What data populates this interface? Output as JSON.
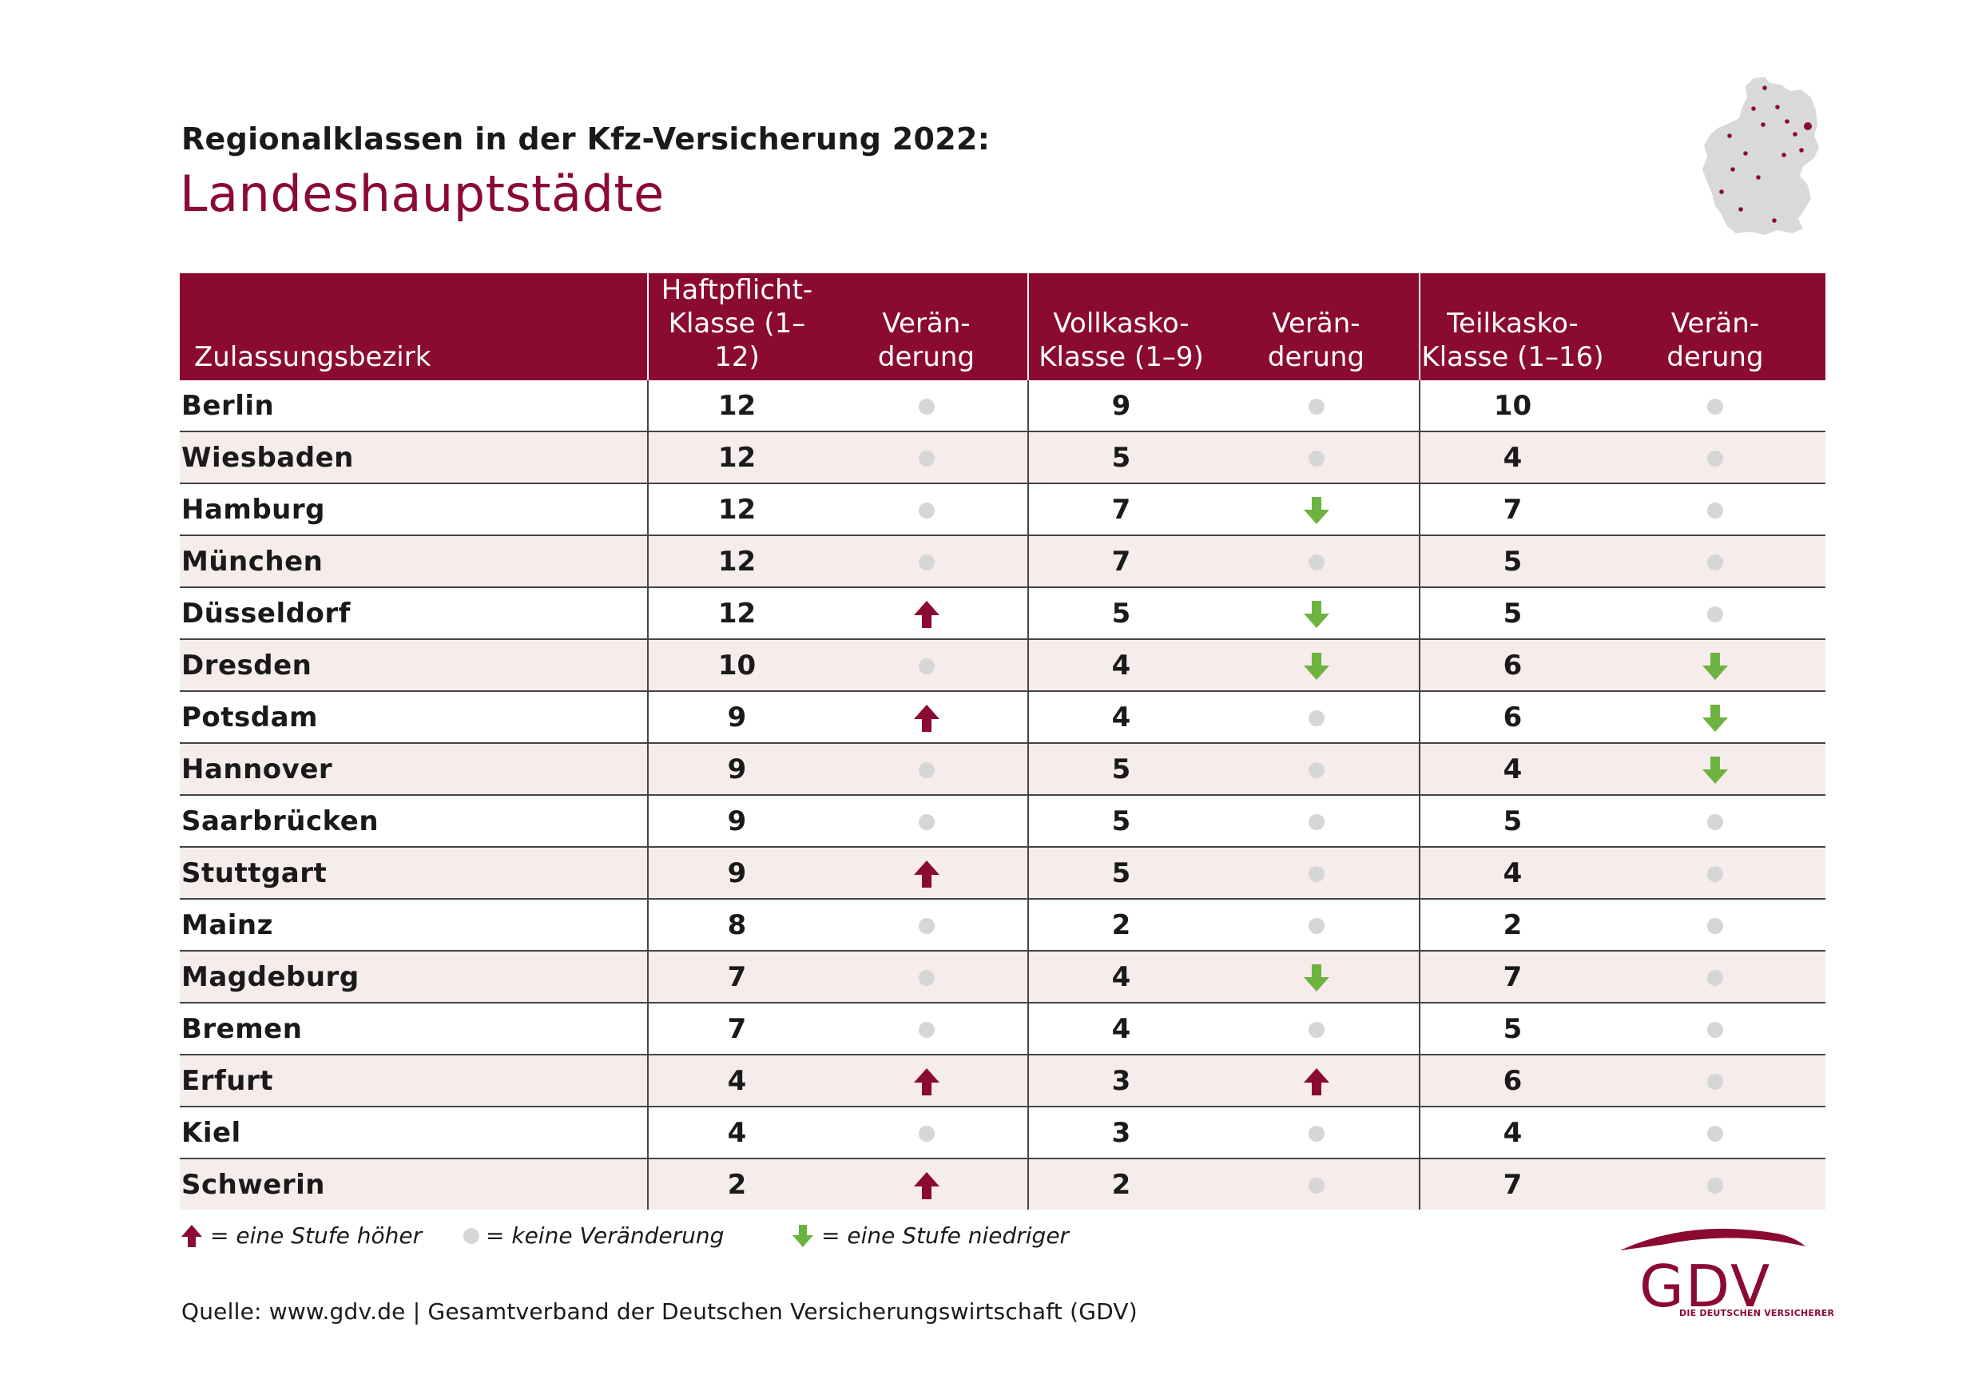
{
  "title": "Regionalklassen in der Kfz-Versicherung 2022:",
  "subtitle": "Landeshauptstädte",
  "headers": {
    "district": "Zulassungsbezirk",
    "hp_line1": "Haftpflicht-",
    "hp_line2": "Klasse (1–12)",
    "vk_line1": "Vollkasko-",
    "vk_line2": "Klasse (1–9)",
    "tk_line1": "Teilkasko-",
    "tk_line2": "Klasse (1–16)",
    "change_line1": "Verän-",
    "change_line2": "derung"
  },
  "rows": [
    {
      "city": "Berlin",
      "hp": "12",
      "hp_change": "none",
      "vk": "9",
      "vk_change": "none",
      "tk": "10",
      "tk_change": "none"
    },
    {
      "city": "Wiesbaden",
      "hp": "12",
      "hp_change": "none",
      "vk": "5",
      "vk_change": "none",
      "tk": "4",
      "tk_change": "none"
    },
    {
      "city": "Hamburg",
      "hp": "12",
      "hp_change": "none",
      "vk": "7",
      "vk_change": "down",
      "tk": "7",
      "tk_change": "none"
    },
    {
      "city": "München",
      "hp": "12",
      "hp_change": "none",
      "vk": "7",
      "vk_change": "none",
      "tk": "5",
      "tk_change": "none"
    },
    {
      "city": "Düsseldorf",
      "hp": "12",
      "hp_change": "up",
      "vk": "5",
      "vk_change": "down",
      "tk": "5",
      "tk_change": "none"
    },
    {
      "city": "Dresden",
      "hp": "10",
      "hp_change": "none",
      "vk": "4",
      "vk_change": "down",
      "tk": "6",
      "tk_change": "down"
    },
    {
      "city": "Potsdam",
      "hp": "9",
      "hp_change": "up",
      "vk": "4",
      "vk_change": "none",
      "tk": "6",
      "tk_change": "down"
    },
    {
      "city": "Hannover",
      "hp": "9",
      "hp_change": "none",
      "vk": "5",
      "vk_change": "none",
      "tk": "4",
      "tk_change": "down"
    },
    {
      "city": "Saarbrücken",
      "hp": "9",
      "hp_change": "none",
      "vk": "5",
      "vk_change": "none",
      "tk": "5",
      "tk_change": "none"
    },
    {
      "city": "Stuttgart",
      "hp": "9",
      "hp_change": "up",
      "vk": "5",
      "vk_change": "none",
      "tk": "4",
      "tk_change": "none"
    },
    {
      "city": "Mainz",
      "hp": "8",
      "hp_change": "none",
      "vk": "2",
      "vk_change": "none",
      "tk": "2",
      "tk_change": "none"
    },
    {
      "city": "Magdeburg",
      "hp": "7",
      "hp_change": "none",
      "vk": "4",
      "vk_change": "down",
      "tk": "7",
      "tk_change": "none"
    },
    {
      "city": "Bremen",
      "hp": "7",
      "hp_change": "none",
      "vk": "4",
      "vk_change": "none",
      "tk": "5",
      "tk_change": "none"
    },
    {
      "city": "Erfurt",
      "hp": "4",
      "hp_change": "up",
      "vk": "3",
      "vk_change": "up",
      "tk": "6",
      "tk_change": "none"
    },
    {
      "city": "Kiel",
      "hp": "4",
      "hp_change": "none",
      "vk": "3",
      "vk_change": "none",
      "tk": "4",
      "tk_change": "none"
    },
    {
      "city": "Schwerin",
      "hp": "2",
      "hp_change": "up",
      "vk": "2",
      "vk_change": "none",
      "tk": "7",
      "tk_change": "none"
    }
  ],
  "legend": {
    "up": "= eine Stufe höher",
    "none": "= keine Veränderung",
    "down": "= eine Stufe niedriger"
  },
  "source": "Quelle: www.gdv.de | Gesamtverband der Deutschen Versicherungswirtschaft (GDV)",
  "colors": {
    "brand": "#8b0a32",
    "up_arrow": "#8b0a32",
    "down_arrow": "#6db33f",
    "no_change_dot": "#d6d6d6",
    "alt_row": "#f6eceb"
  },
  "icons": {
    "up": "arrow-up-icon",
    "down": "arrow-down-icon",
    "none": "dot-icon"
  }
}
